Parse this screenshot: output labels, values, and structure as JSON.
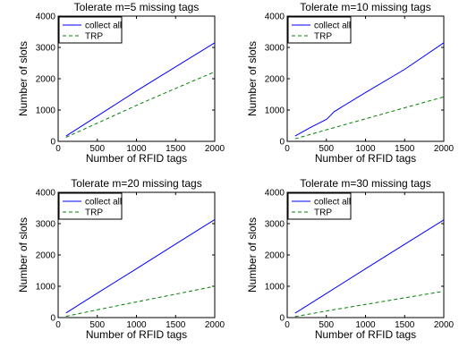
{
  "chart_data": [
    {
      "type": "line",
      "title": "Tolerate m=5 missing tags",
      "xlabel": "Number of RFID tags",
      "ylabel": "Number of slots",
      "xlim": [
        0,
        2000
      ],
      "ylim": [
        0,
        4000
      ],
      "xticks": [
        "0",
        "500",
        "1000",
        "1500",
        "2000"
      ],
      "yticks": [
        "0",
        "1000",
        "2000",
        "3000",
        "4000"
      ],
      "grid": false,
      "legend": "top-left",
      "series": [
        {
          "name": "collect all",
          "color": "#0000ff",
          "style": "solid",
          "x": [
            100,
            500,
            1000,
            1500,
            2000
          ],
          "y": [
            170,
            810,
            1610,
            2380,
            3150
          ]
        },
        {
          "name": "TRP",
          "color": "#008000",
          "style": "dashed",
          "x": [
            100,
            500,
            1000,
            1500,
            2000
          ],
          "y": [
            130,
            580,
            1150,
            1690,
            2220
          ]
        }
      ]
    },
    {
      "type": "line",
      "title": "Tolerate m=10 missing tags",
      "xlabel": "Number of RFID tags",
      "ylabel": "Number of slots",
      "xlim": [
        0,
        2000
      ],
      "ylim": [
        0,
        4000
      ],
      "xticks": [
        "0",
        "500",
        "1000",
        "1500",
        "2000"
      ],
      "yticks": [
        "0",
        "1000",
        "2000",
        "3000",
        "4000"
      ],
      "grid": false,
      "legend": "top-left",
      "series": [
        {
          "name": "collect all",
          "color": "#0000ff",
          "style": "solid",
          "x": [
            100,
            300,
            500,
            550,
            600,
            1000,
            1500,
            2000
          ],
          "y": [
            170,
            450,
            700,
            820,
            950,
            1560,
            2300,
            3150
          ]
        },
        {
          "name": "TRP",
          "color": "#008000",
          "style": "dashed",
          "x": [
            100,
            500,
            1000,
            1500,
            2000
          ],
          "y": [
            80,
            370,
            720,
            1070,
            1420
          ]
        }
      ]
    },
    {
      "type": "line",
      "title": "Tolerate m=20 missing tags",
      "xlabel": "Number of RFID tags",
      "ylabel": "Number of slots",
      "xlim": [
        0,
        2000
      ],
      "ylim": [
        0,
        4000
      ],
      "xticks": [
        "0",
        "500",
        "1000",
        "1500",
        "2000"
      ],
      "yticks": [
        "0",
        "1000",
        "2000",
        "3000",
        "4000"
      ],
      "grid": false,
      "legend": "top-left",
      "series": [
        {
          "name": "collect all",
          "color": "#0000ff",
          "style": "solid",
          "x": [
            100,
            500,
            1000,
            1500,
            2000
          ],
          "y": [
            150,
            780,
            1560,
            2350,
            3130
          ]
        },
        {
          "name": "TRP",
          "color": "#008000",
          "style": "dashed",
          "x": [
            100,
            500,
            1000,
            1500,
            2000
          ],
          "y": [
            40,
            250,
            500,
            750,
            1000
          ]
        }
      ]
    },
    {
      "type": "line",
      "title": "Tolerate m=30 missing tags",
      "xlabel": "Number of RFID tags",
      "ylabel": "Number of slots",
      "xlim": [
        0,
        2000
      ],
      "ylim": [
        0,
        4000
      ],
      "xticks": [
        "0",
        "500",
        "1000",
        "1500",
        "2000"
      ],
      "yticks": [
        "0",
        "1000",
        "2000",
        "3000",
        "4000"
      ],
      "grid": false,
      "legend": "top-left",
      "series": [
        {
          "name": "collect all",
          "color": "#0000ff",
          "style": "solid",
          "x": [
            100,
            500,
            1000,
            1500,
            2000
          ],
          "y": [
            140,
            770,
            1560,
            2340,
            3120
          ]
        },
        {
          "name": "TRP",
          "color": "#008000",
          "style": "dashed",
          "x": [
            100,
            500,
            1000,
            1500,
            2000
          ],
          "y": [
            30,
            210,
            420,
            630,
            840
          ]
        }
      ]
    }
  ]
}
